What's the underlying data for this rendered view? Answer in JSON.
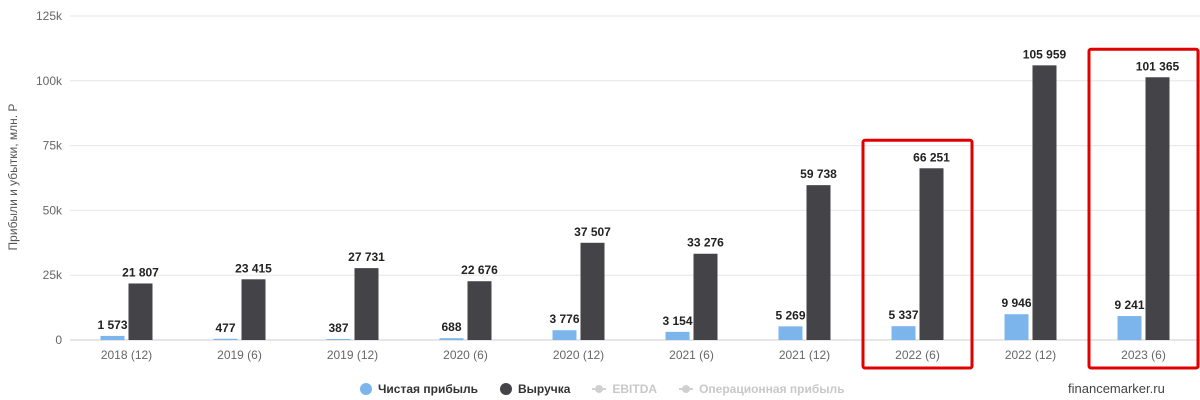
{
  "chart_data": {
    "type": "bar",
    "ylabel": "Прибыли и убытки, млн. Р",
    "ylim": [
      0,
      125000
    ],
    "yticks": [
      0,
      25000,
      50000,
      75000,
      100000,
      125000
    ],
    "ytick_labels": [
      "0",
      "25k",
      "50k",
      "75k",
      "100k",
      "125k"
    ],
    "grid": true,
    "categories": [
      "2018 (12)",
      "2019 (6)",
      "2019 (12)",
      "2020 (6)",
      "2020 (12)",
      "2021 (6)",
      "2021 (12)",
      "2022 (6)",
      "2022 (12)",
      "2023 (6)"
    ],
    "series": [
      {
        "name": "Чистая прибыль",
        "color": "#7cb5ec",
        "values": [
          1573,
          477,
          387,
          688,
          3776,
          3154,
          5269,
          5337,
          9946,
          9241
        ],
        "labels": [
          "1 573",
          "477",
          "387",
          "688",
          "3 776",
          "3 154",
          "5 269",
          "5 337",
          "9 946",
          "9 241"
        ]
      },
      {
        "name": "Выручка",
        "color": "#434348",
        "values": [
          21807,
          23415,
          27731,
          22676,
          37507,
          33276,
          59738,
          66251,
          105959,
          101365
        ],
        "labels": [
          "21 807",
          "23 415",
          "27 731",
          "22 676",
          "37 507",
          "33 276",
          "59 738",
          "66 251",
          "105 959",
          "101 365"
        ]
      }
    ],
    "highlighted_categories": [
      "2022 (6)",
      "2023 (6)"
    ],
    "highlight_color": "#e00000",
    "legend_placement": "bottom"
  },
  "legend": {
    "items": [
      {
        "label": "Чистая прибыль",
        "icon": "dot",
        "color": "#7cb5ec",
        "enabled": true
      },
      {
        "label": "Выручка",
        "icon": "dot",
        "color": "#434348",
        "enabled": true
      },
      {
        "label": "EBITDA",
        "icon": "line-marker",
        "color": "#d0d0d0",
        "enabled": false
      },
      {
        "label": "Операционная прибыль",
        "icon": "line-marker",
        "color": "#d0d0d0",
        "enabled": false
      }
    ]
  },
  "source": "financemarker.ru"
}
